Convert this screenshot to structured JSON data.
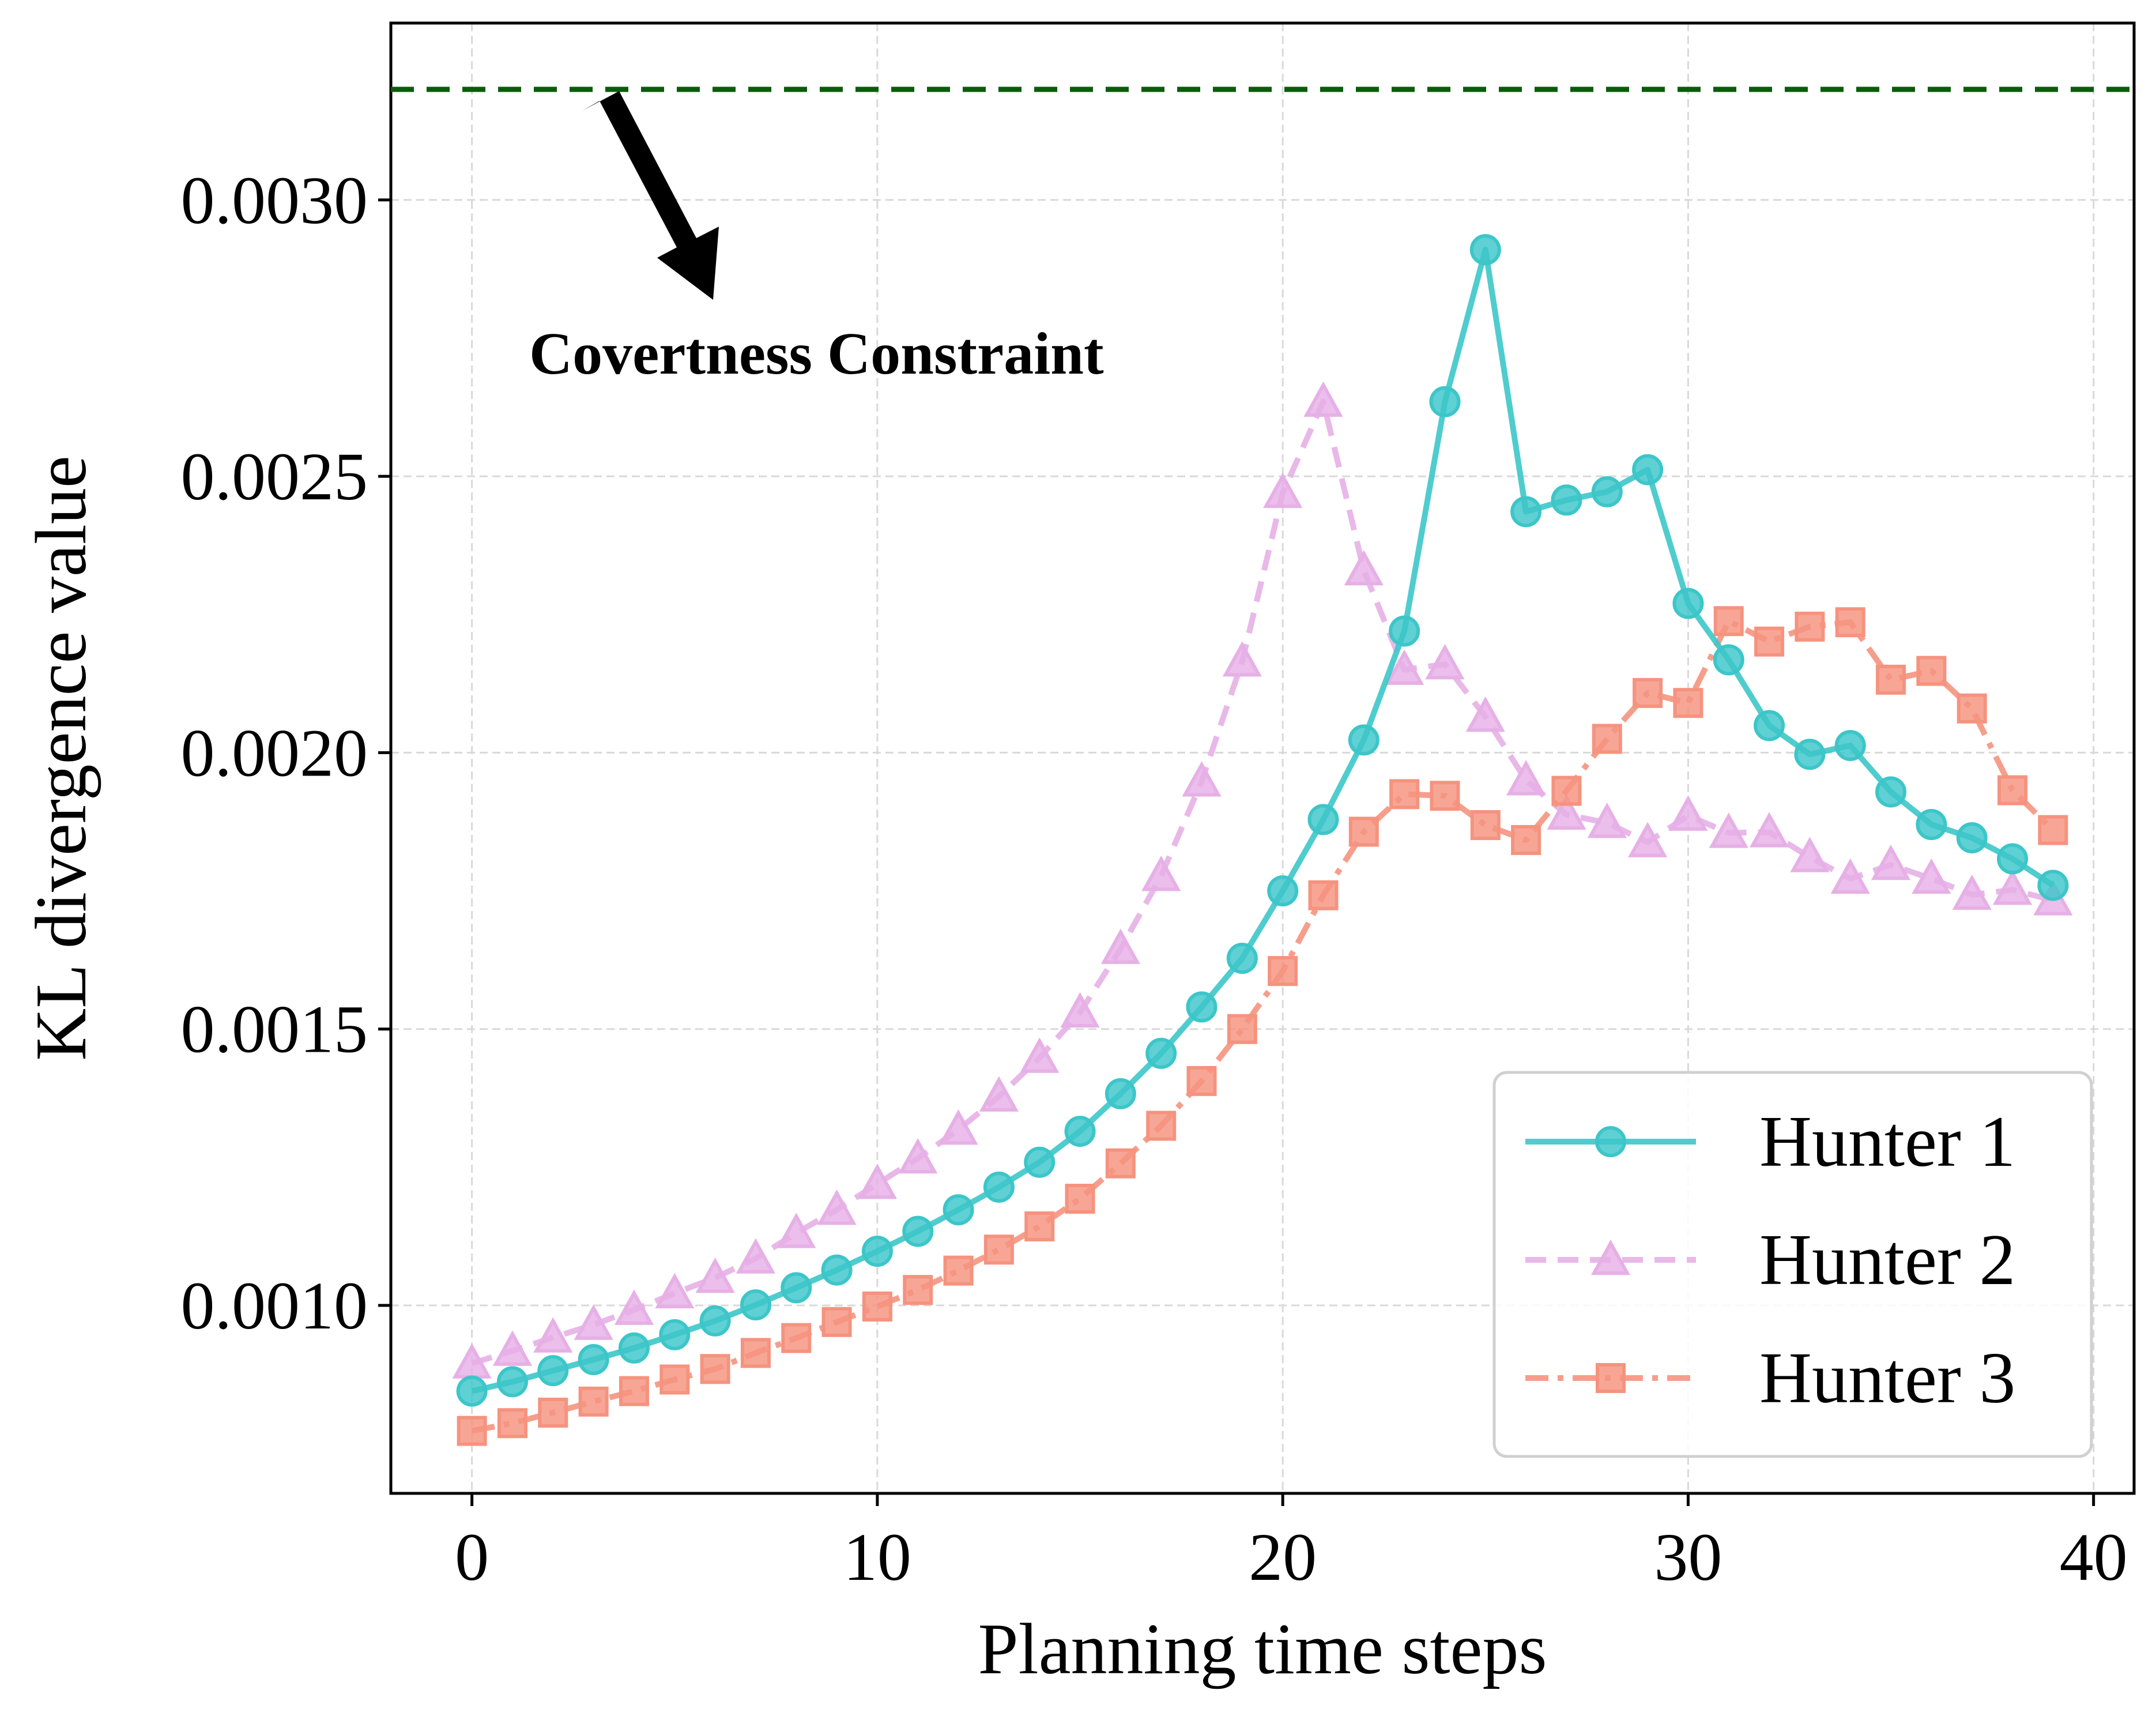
{
  "chart_data": {
    "type": "line",
    "title": "",
    "xlabel": "Planning time steps",
    "ylabel": "KL divergence value",
    "xlim": [
      -2,
      41
    ],
    "ylim": [
      0.00066,
      0.00332
    ],
    "xticks": [
      0,
      10,
      20,
      30,
      40
    ],
    "xtick_labels": [
      "0",
      "10",
      "20",
      "30",
      "40"
    ],
    "yticks": [
      0.001,
      0.0015,
      0.002,
      0.0025,
      0.003
    ],
    "ytick_labels": [
      "0.0010",
      "0.0015",
      "0.0020",
      "0.0025",
      "0.0030"
    ],
    "grid": true,
    "legend_position": "bottom-right",
    "x": [
      0,
      1,
      2,
      3,
      4,
      5,
      6,
      7,
      8,
      9,
      10,
      11,
      12,
      13,
      14,
      15,
      16,
      17,
      18,
      19,
      20,
      21,
      22,
      23,
      24,
      25,
      26,
      27,
      28,
      29,
      30,
      31,
      32,
      33,
      34,
      35,
      36,
      37,
      38,
      39
    ],
    "series": [
      {
        "name": "Hunter 1",
        "color": "#3cc6c9",
        "line_style": "solid",
        "marker": "circle",
        "values": [
          0.000845,
          0.000862,
          0.000882,
          0.000902,
          0.000923,
          0.000947,
          0.000972,
          0.001001,
          0.001032,
          0.001064,
          0.001098,
          0.001134,
          0.001173,
          0.001214,
          0.001259,
          0.001315,
          0.001383,
          0.001456,
          0.00154,
          0.001628,
          0.00175,
          0.001879,
          0.002023,
          0.00222,
          0.002635,
          0.00291,
          0.002436,
          0.002457,
          0.002472,
          0.002512,
          0.00227,
          0.002168,
          0.002049,
          0.001997,
          0.002013,
          0.001929,
          0.00187,
          0.001846,
          0.001808,
          0.00176
        ]
      },
      {
        "name": "Hunter 2",
        "color": "#e6b0e6",
        "line_style": "dashed",
        "marker": "triangle",
        "values": [
          0.000895,
          0.000918,
          0.000942,
          0.000965,
          0.000992,
          0.001022,
          0.00105,
          0.001085,
          0.001131,
          0.001173,
          0.00122,
          0.001266,
          0.001318,
          0.001378,
          0.001448,
          0.00153,
          0.001645,
          0.001777,
          0.001948,
          0.002165,
          0.00247,
          0.002635,
          0.00233,
          0.00215,
          0.00216,
          0.002065,
          0.00195,
          0.001888,
          0.001873,
          0.001838,
          0.001886,
          0.001855,
          0.001856,
          0.001811,
          0.001772,
          0.001797,
          0.001772,
          0.001743,
          0.001752,
          0.001733
        ]
      },
      {
        "name": "Hunter 3",
        "color": "#f5937f",
        "line_style": "dashdot",
        "marker": "square",
        "values": [
          0.000773,
          0.000787,
          0.000806,
          0.000826,
          0.000845,
          0.000866,
          0.000885,
          0.000914,
          0.000941,
          0.00097,
          0.000998,
          0.001028,
          0.001063,
          0.001101,
          0.001143,
          0.001193,
          0.001257,
          0.001325,
          0.001406,
          0.0015,
          0.001605,
          0.001742,
          0.001857,
          0.001925,
          0.001922,
          0.001869,
          0.001842,
          0.001931,
          0.002025,
          0.002108,
          0.00209,
          0.002238,
          0.002201,
          0.002228,
          0.002236,
          0.002132,
          0.002148,
          0.00208,
          0.001932,
          0.00186
        ]
      }
    ],
    "reference_line": {
      "label": "Covertness Constraint",
      "y": 0.0032,
      "color": "#0a5c0a",
      "line_style": "dashed"
    },
    "annotation": {
      "text": "Covertness Constraint"
    }
  }
}
